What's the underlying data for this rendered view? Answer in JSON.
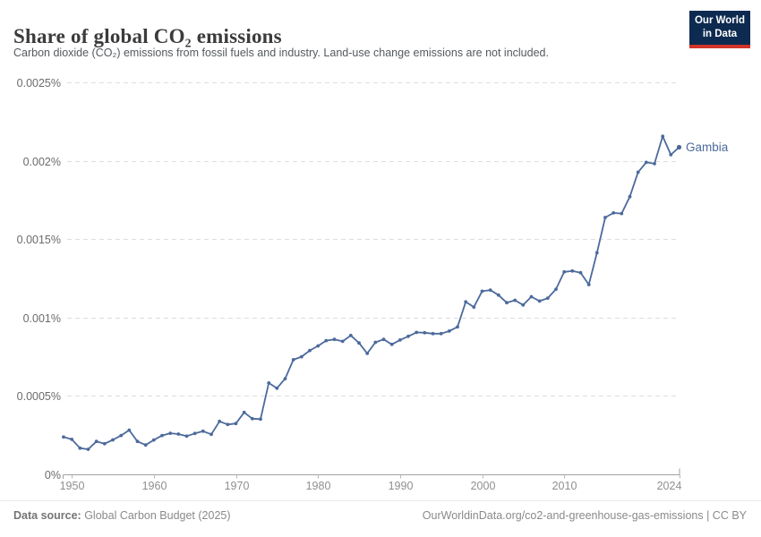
{
  "header": {
    "title": "Share of global CO₂ emissions",
    "subtitle": "Carbon dioxide (CO₂) emissions from fossil fuels and industry. Land-use change emissions are not included.",
    "logo": {
      "line1": "Our World",
      "line2": "in Data"
    }
  },
  "footer": {
    "source_label": "Data source:",
    "source_text": " Global Carbon Budget (2025)",
    "credit": "OurWorldinData.org/co2-and-greenhouse-gas-emissions | CC BY"
  },
  "colors": {
    "series_blue": "#4c6a9c",
    "grid": "#dedede",
    "axis_line": "#a0a0a0",
    "tick": "#b8b8b8",
    "axis_text_y": "#6b6b6b",
    "axis_text_x": "#8f8f8f",
    "logo_navy": "#0d2a50",
    "logo_red": "#d1342a",
    "title_text": "#3b3b3b"
  },
  "chart_data": {
    "type": "line",
    "title": "Share of global CO₂ emissions",
    "xlabel": "",
    "ylabel": "",
    "grid": "horizontal-dashed",
    "legend_position": "end-of-line-label",
    "xlim": [
      1949,
      2024
    ],
    "ylim": [
      0,
      0.0025
    ],
    "x_ticks": [
      1950,
      1960,
      1970,
      1980,
      1990,
      2000,
      2010,
      2024
    ],
    "y_ticks": [
      0,
      0.0005,
      0.001,
      0.0015,
      0.002,
      0.0025
    ],
    "y_tick_labels": [
      "0%",
      "0.0005%",
      "0.001%",
      "0.0015%",
      "0.002%",
      "0.0025%"
    ],
    "series": [
      {
        "name": "Gambia",
        "color": "#4c6a9c",
        "x": [
          1949,
          1950,
          1951,
          1952,
          1953,
          1954,
          1955,
          1956,
          1957,
          1958,
          1959,
          1960,
          1961,
          1962,
          1963,
          1964,
          1965,
          1966,
          1967,
          1968,
          1969,
          1970,
          1971,
          1972,
          1973,
          1974,
          1975,
          1976,
          1977,
          1978,
          1979,
          1980,
          1981,
          1982,
          1983,
          1984,
          1985,
          1986,
          1987,
          1988,
          1989,
          1990,
          1991,
          1992,
          1993,
          1994,
          1995,
          1996,
          1997,
          1998,
          1999,
          2000,
          2001,
          2002,
          2003,
          2004,
          2005,
          2006,
          2007,
          2008,
          2009,
          2010,
          2011,
          2012,
          2013,
          2014,
          2015,
          2016,
          2017,
          2018,
          2019,
          2020,
          2021,
          2022,
          2023,
          2024
        ],
        "values": [
          0.000238,
          0.000223,
          0.000167,
          0.00016,
          0.00021,
          0.000195,
          0.00022,
          0.000248,
          0.000282,
          0.00021,
          0.000187,
          0.000219,
          0.000248,
          0.000262,
          0.000257,
          0.000244,
          0.000261,
          0.000275,
          0.000255,
          0.000338,
          0.000318,
          0.000324,
          0.000395,
          0.000355,
          0.000352,
          0.000583,
          0.000549,
          0.00061,
          0.000731,
          0.00075,
          0.00079,
          0.000819,
          0.000853,
          0.000861,
          0.000848,
          0.000886,
          0.000838,
          0.000771,
          0.000842,
          0.000861,
          0.000829,
          0.000857,
          0.00088,
          0.000905,
          0.000903,
          0.000897,
          0.000897,
          0.000914,
          0.00094,
          0.0011,
          0.001067,
          0.001168,
          0.001175,
          0.001143,
          0.001095,
          0.00111,
          0.00108,
          0.001133,
          0.001105,
          0.001124,
          0.001181,
          0.001291,
          0.001297,
          0.001286,
          0.00121,
          0.001413,
          0.001638,
          0.001667,
          0.001663,
          0.001771,
          0.001927,
          0.00199,
          0.001981,
          0.002156,
          0.002038,
          0.002086
        ]
      }
    ]
  }
}
